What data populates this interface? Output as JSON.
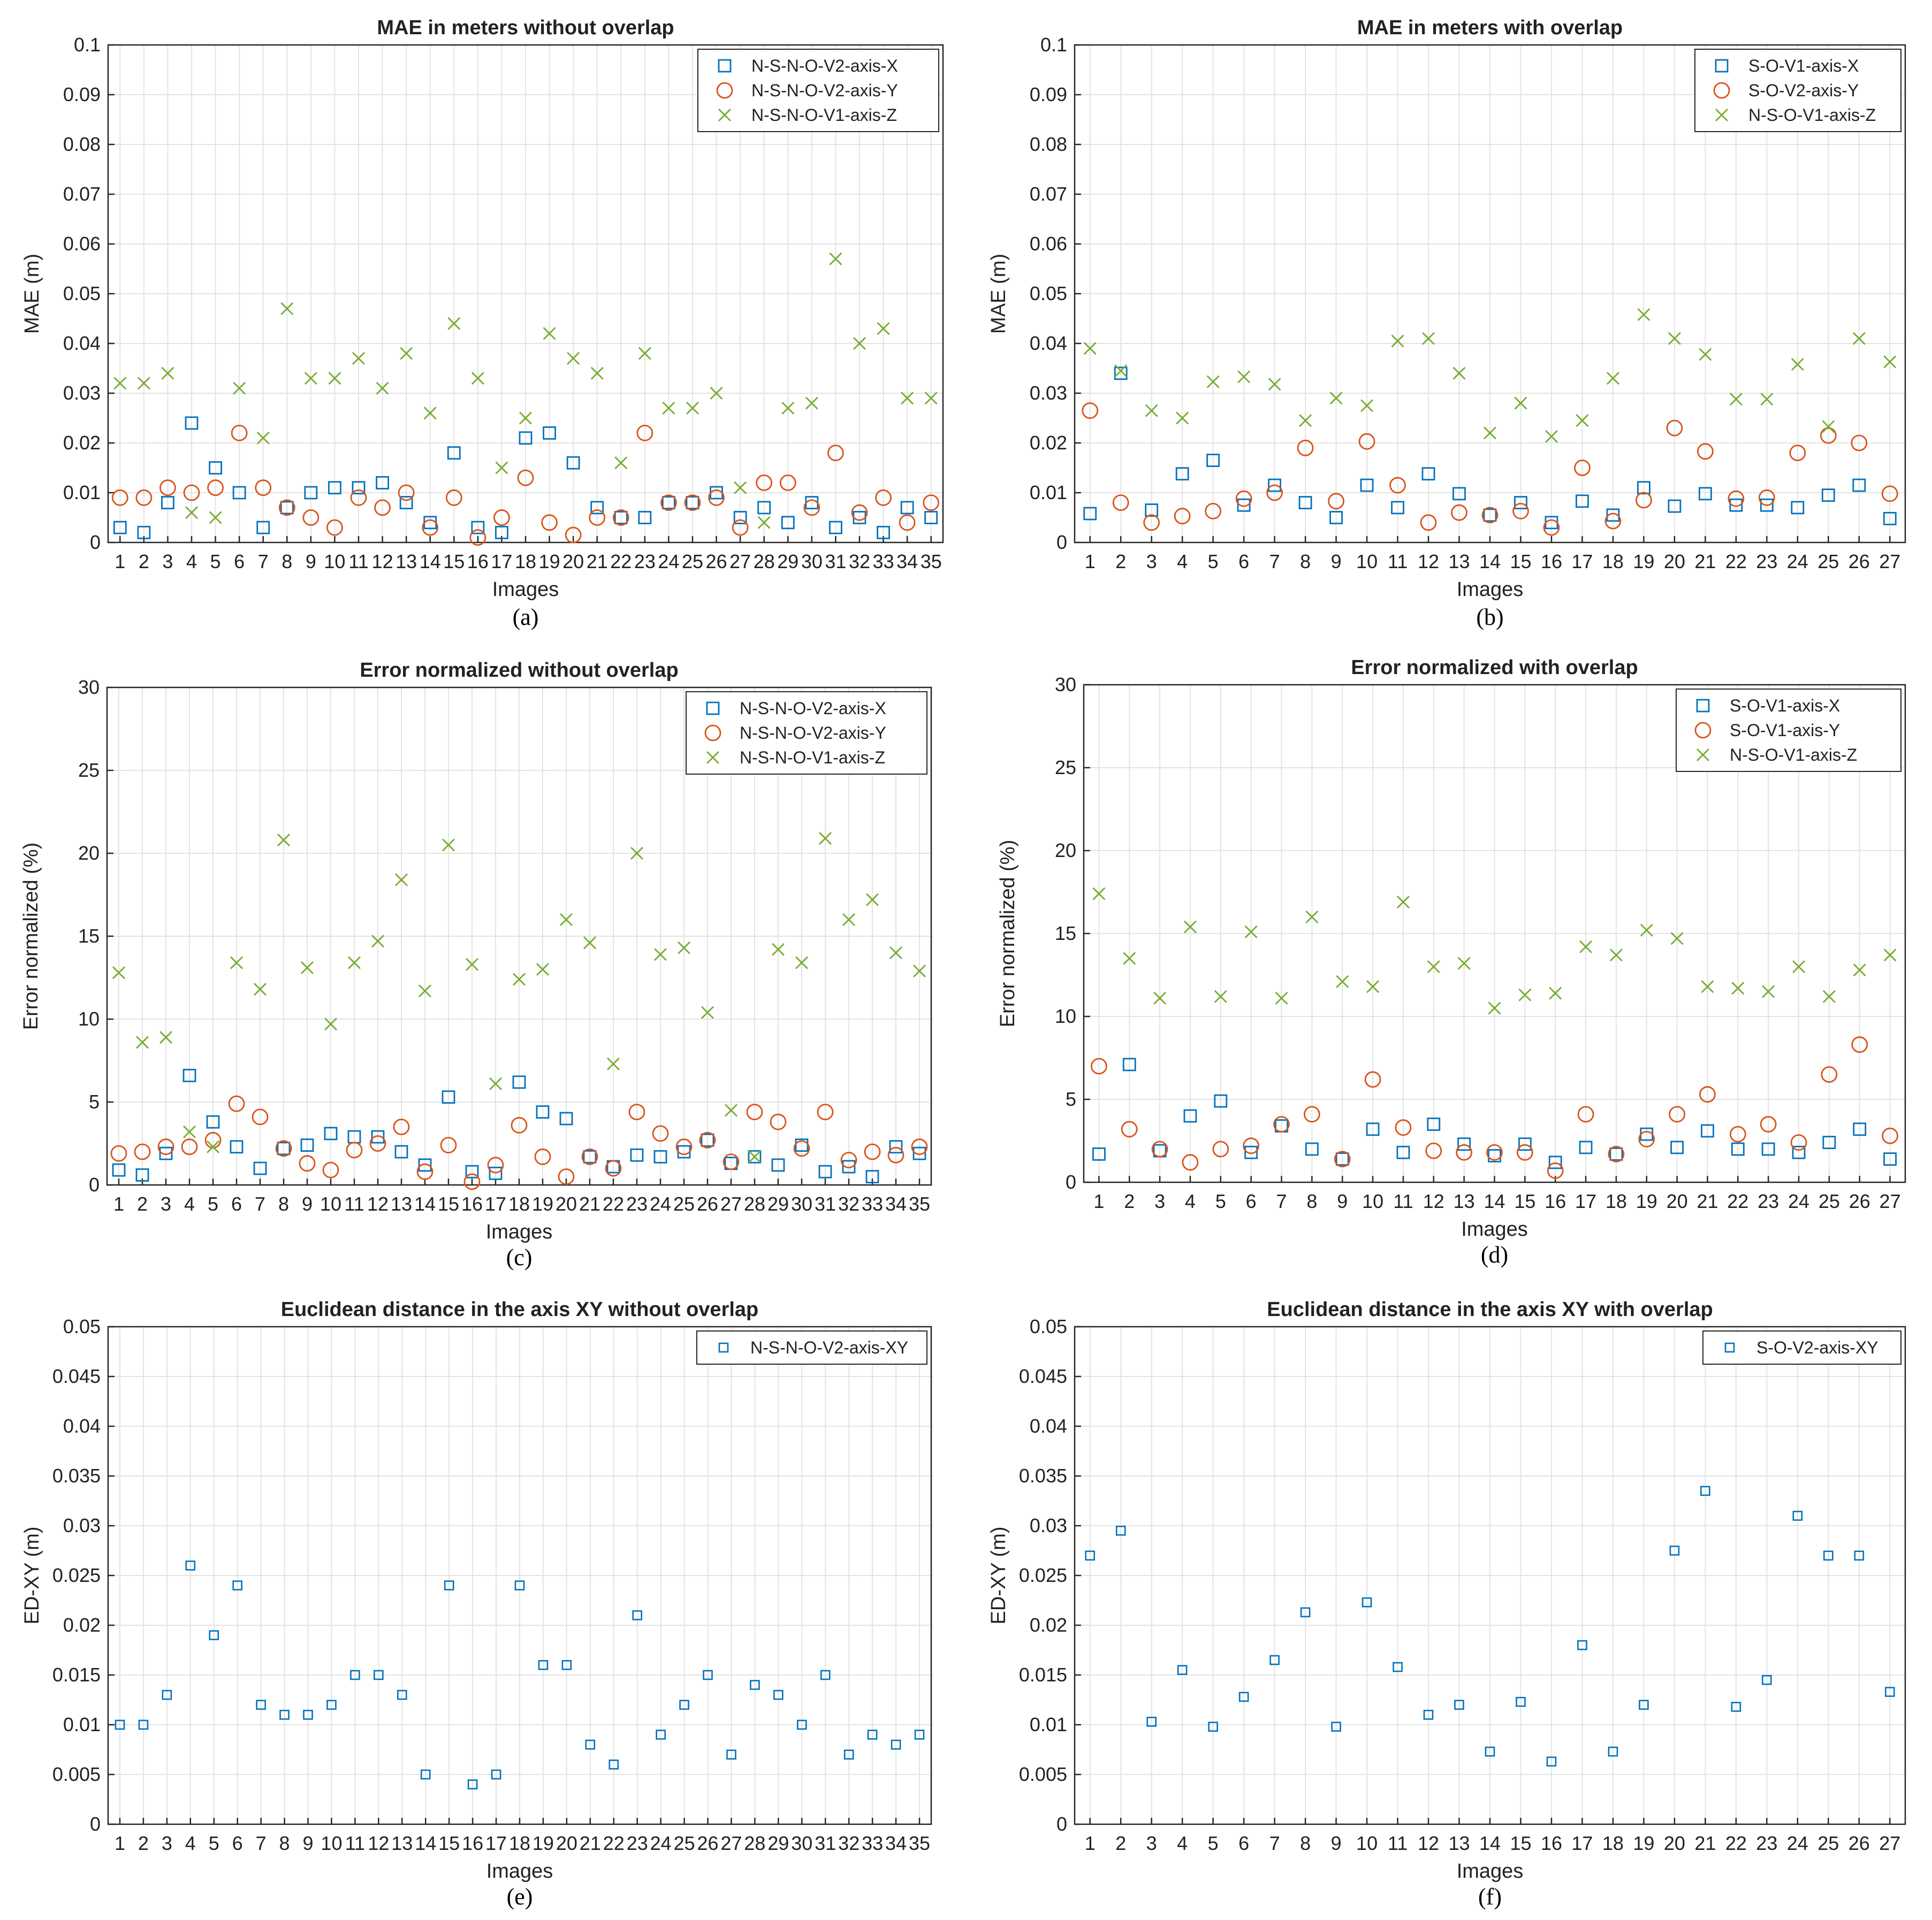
{
  "colors": {
    "x": "#0072BD",
    "y": "#D95319",
    "z": "#77AC30"
  },
  "chart_data": [
    {
      "type": "scatter",
      "title": "MAE in meters without overlap",
      "xlabel": "Images",
      "ylabel": "MAE (m)",
      "caption": "(a)",
      "ylim": [
        0,
        0.1
      ],
      "yticks": [
        0,
        0.01,
        0.02,
        0.03,
        0.04,
        0.05,
        0.06,
        0.07,
        0.08,
        0.09,
        0.1
      ],
      "yticklabels": [
        "0",
        "0.01",
        "0.02",
        "0.03",
        "0.04",
        "0.05",
        "0.06",
        "0.07",
        "0.08",
        "0.09",
        "0.1"
      ],
      "categories": [
        "1",
        "2",
        "3",
        "4",
        "5",
        "6",
        "7",
        "8",
        "9",
        "10",
        "11",
        "12",
        "13",
        "14",
        "15",
        "16",
        "17",
        "18",
        "19",
        "20",
        "21",
        "22",
        "23",
        "24",
        "25",
        "26",
        "27",
        "28",
        "29",
        "30",
        "31",
        "32",
        "33",
        "34",
        "35"
      ],
      "grid": true,
      "legend_position": "top-right",
      "series": [
        {
          "name": "N-S-N-O-V2-axis-X",
          "marker": "square",
          "color": "#0072BD",
          "values": [
            0.003,
            0.002,
            0.008,
            0.024,
            0.015,
            0.01,
            0.003,
            0.007,
            0.01,
            0.011,
            0.011,
            0.012,
            0.008,
            0.004,
            0.018,
            0.003,
            0.002,
            0.021,
            0.022,
            0.016,
            0.007,
            0.005,
            0.005,
            0.008,
            0.008,
            0.01,
            0.005,
            0.007,
            0.004,
            0.008,
            0.003,
            0.005,
            0.002,
            0.007,
            0.005
          ]
        },
        {
          "name": "N-S-N-O-V2-axis-Y",
          "marker": "circle",
          "color": "#D95319",
          "values": [
            0.009,
            0.009,
            0.011,
            0.01,
            0.011,
            0.022,
            0.011,
            0.007,
            0.005,
            0.003,
            0.009,
            0.007,
            0.01,
            0.003,
            0.009,
            0.001,
            0.005,
            0.013,
            0.004,
            0.0015,
            0.005,
            0.005,
            0.022,
            0.008,
            0.008,
            0.009,
            0.003,
            0.012,
            0.012,
            0.007,
            0.018,
            0.006,
            0.009,
            0.004,
            0.008
          ]
        },
        {
          "name": "N-S-N-O-V1-axis-Z",
          "marker": "x",
          "color": "#77AC30",
          "values": [
            0.032,
            0.032,
            0.034,
            0.006,
            0.005,
            0.031,
            0.021,
            0.047,
            0.033,
            0.033,
            0.037,
            0.031,
            0.038,
            0.026,
            0.044,
            0.033,
            0.015,
            0.025,
            0.042,
            0.037,
            0.034,
            0.016,
            0.038,
            0.027,
            0.027,
            0.03,
            0.011,
            0.004,
            0.027,
            0.028,
            0.057,
            0.04,
            0.043,
            0.029,
            0.029
          ]
        }
      ]
    },
    {
      "type": "scatter",
      "title": "MAE in meters with overlap",
      "xlabel": "Images",
      "ylabel": "MAE (m)",
      "caption": "(b)",
      "ylim": [
        0,
        0.1
      ],
      "yticks": [
        0,
        0.01,
        0.02,
        0.03,
        0.04,
        0.05,
        0.06,
        0.07,
        0.08,
        0.09,
        0.1
      ],
      "yticklabels": [
        "0",
        "0.01",
        "0.02",
        "0.03",
        "0.04",
        "0.05",
        "0.06",
        "0.07",
        "0.08",
        "0.09",
        "0.1"
      ],
      "categories": [
        "1",
        "2",
        "3",
        "4",
        "5",
        "6",
        "7",
        "8",
        "9",
        "10",
        "11",
        "12",
        "13",
        "14",
        "15",
        "16",
        "17",
        "18",
        "19",
        "20",
        "21",
        "22",
        "23",
        "24",
        "25",
        "26",
        "27"
      ],
      "grid": true,
      "legend_position": "top-right",
      "series": [
        {
          "name": "S-O-V1-axis-X",
          "marker": "square",
          "color": "#0072BD",
          "values": [
            0.0058,
            0.034,
            0.0065,
            0.0138,
            0.0165,
            0.0075,
            0.0115,
            0.008,
            0.005,
            0.0115,
            0.007,
            0.0138,
            0.0098,
            0.0055,
            0.008,
            0.004,
            0.0083,
            0.0055,
            0.011,
            0.0073,
            0.0098,
            0.0075,
            0.0075,
            0.007,
            0.0095,
            0.0115,
            0.0048
          ]
        },
        {
          "name": "S-O-V2-axis-Y",
          "marker": "circle",
          "color": "#D95319",
          "values": [
            0.0265,
            0.008,
            0.004,
            0.0053,
            0.0063,
            0.0088,
            0.01,
            0.019,
            0.0083,
            0.0203,
            0.0115,
            0.004,
            0.006,
            0.0055,
            0.0063,
            0.003,
            0.015,
            0.0043,
            0.0085,
            0.023,
            0.0183,
            0.0088,
            0.009,
            0.018,
            0.0215,
            0.02,
            0.0098
          ]
        },
        {
          "name": "N-S-O-V1-axis-Z",
          "marker": "x",
          "color": "#77AC30",
          "values": [
            0.039,
            0.0345,
            0.0265,
            0.025,
            0.0323,
            0.0333,
            0.0318,
            0.0245,
            0.029,
            0.0275,
            0.0405,
            0.041,
            0.034,
            0.022,
            0.028,
            0.0213,
            0.0245,
            0.033,
            0.0458,
            0.041,
            0.0378,
            0.0288,
            0.0288,
            0.0358,
            0.0233,
            0.041,
            0.0363
          ]
        }
      ]
    },
    {
      "type": "scatter",
      "title": "Error normalized without overlap",
      "xlabel": "Images",
      "ylabel": "Error normalized (%)",
      "caption": "(c)",
      "ylim": [
        0,
        30
      ],
      "yticks": [
        0,
        5,
        10,
        15,
        20,
        25,
        30
      ],
      "yticklabels": [
        "0",
        "5",
        "10",
        "15",
        "20",
        "25",
        "30"
      ],
      "categories": [
        "1",
        "2",
        "3",
        "4",
        "5",
        "6",
        "7",
        "8",
        "9",
        "10",
        "11",
        "12",
        "13",
        "14",
        "15",
        "16",
        "17",
        "18",
        "19",
        "20",
        "21",
        "22",
        "23",
        "24",
        "25",
        "26",
        "27",
        "28",
        "29",
        "30",
        "31",
        "32",
        "33",
        "34",
        "35"
      ],
      "grid": true,
      "legend_position": "top-right",
      "series": [
        {
          "name": "N-S-N-O-V2-axis-X",
          "marker": "square",
          "color": "#0072BD",
          "values": [
            0.9,
            0.6,
            1.9,
            6.6,
            3.8,
            2.3,
            1.0,
            2.2,
            2.4,
            3.1,
            2.9,
            2.9,
            2.0,
            1.2,
            5.3,
            0.8,
            0.7,
            6.2,
            4.4,
            4.0,
            1.7,
            1.1,
            1.8,
            1.7,
            2.0,
            2.7,
            1.3,
            1.7,
            1.2,
            2.4,
            0.8,
            1.1,
            0.5,
            2.3,
            1.9
          ]
        },
        {
          "name": "N-S-N-O-V2-axis-Y",
          "marker": "circle",
          "color": "#D95319",
          "values": [
            1.9,
            2.0,
            2.3,
            2.3,
            2.7,
            4.9,
            4.1,
            2.2,
            1.3,
            0.9,
            2.1,
            2.5,
            3.5,
            0.8,
            2.4,
            0.2,
            1.2,
            3.6,
            1.7,
            0.5,
            1.7,
            1.0,
            4.4,
            3.1,
            2.3,
            2.7,
            1.4,
            4.4,
            3.8,
            2.2,
            4.4,
            1.5,
            2.0,
            1.8,
            2.3
          ]
        },
        {
          "name": "N-S-N-O-V1-axis-Z",
          "marker": "x",
          "color": "#77AC30",
          "values": [
            12.8,
            8.6,
            8.9,
            3.2,
            2.3,
            13.4,
            11.8,
            20.8,
            13.1,
            9.7,
            13.4,
            14.7,
            18.4,
            11.7,
            20.5,
            13.3,
            6.1,
            12.4,
            13.0,
            16.0,
            14.6,
            7.3,
            20.0,
            13.9,
            14.3,
            10.4,
            4.5,
            1.7,
            14.2,
            13.4,
            20.9,
            16.0,
            17.2,
            14.0,
            12.9
          ]
        }
      ]
    },
    {
      "type": "scatter",
      "title": "Error normalized with overlap",
      "xlabel": "Images",
      "ylabel": "Error normalized (%)",
      "caption": "(d)",
      "ylim": [
        0,
        30
      ],
      "yticks": [
        0,
        5,
        10,
        15,
        20,
        25,
        30
      ],
      "yticklabels": [
        "0",
        "5",
        "10",
        "15",
        "20",
        "25",
        "30"
      ],
      "categories": [
        "1",
        "2",
        "3",
        "4",
        "5",
        "6",
        "7",
        "8",
        "9",
        "10",
        "11",
        "12",
        "13",
        "14",
        "15",
        "16",
        "17",
        "18",
        "19",
        "20",
        "21",
        "22",
        "23",
        "24",
        "25",
        "26",
        "27"
      ],
      "grid": true,
      "legend_position": "top-right",
      "series": [
        {
          "name": "S-O-V1-axis-X",
          "marker": "square",
          "color": "#0072BD",
          "values": [
            1.7,
            7.1,
            1.9,
            4.0,
            4.9,
            1.8,
            3.4,
            2.0,
            1.4,
            3.2,
            1.8,
            3.5,
            2.3,
            1.6,
            2.3,
            1.2,
            2.1,
            1.7,
            2.9,
            2.1,
            3.1,
            2.0,
            2.0,
            1.8,
            2.4,
            3.2,
            1.4
          ]
        },
        {
          "name": "S-O-V1-axis-Y",
          "marker": "circle",
          "color": "#D95319",
          "values": [
            7.0,
            3.2,
            2.0,
            1.2,
            2.0,
            2.2,
            3.5,
            4.1,
            1.4,
            6.2,
            3.3,
            1.9,
            1.8,
            1.8,
            1.8,
            0.7,
            4.1,
            1.7,
            2.6,
            4.1,
            5.3,
            2.9,
            3.5,
            2.4,
            6.5,
            8.3,
            2.8
          ]
        },
        {
          "name": "N-S-O-V1-axis-Z",
          "marker": "x",
          "color": "#77AC30",
          "values": [
            17.4,
            13.5,
            11.1,
            15.4,
            11.2,
            15.1,
            11.1,
            16.0,
            12.1,
            11.8,
            16.9,
            13.0,
            13.2,
            10.5,
            11.3,
            11.4,
            14.2,
            13.7,
            15.2,
            14.7,
            11.8,
            11.7,
            11.5,
            13.0,
            11.2,
            12.8,
            13.7
          ]
        }
      ]
    },
    {
      "type": "scatter",
      "title": "Euclidean distance in the axis XY without overlap",
      "xlabel": "Images",
      "ylabel": "ED-XY (m)",
      "caption": "(e)",
      "ylim": [
        0,
        0.05
      ],
      "yticks": [
        0,
        0.005,
        0.01,
        0.015,
        0.02,
        0.025,
        0.03,
        0.035,
        0.04,
        0.045,
        0.05
      ],
      "yticklabels": [
        "0",
        "0.005",
        "0.01",
        "0.015",
        "0.02",
        "0.025",
        "0.03",
        "0.035",
        "0.04",
        "0.045",
        "0.05"
      ],
      "categories": [
        "1",
        "2",
        "3",
        "4",
        "5",
        "6",
        "7",
        "8",
        "9",
        "10",
        "11",
        "12",
        "13",
        "14",
        "15",
        "16",
        "17",
        "18",
        "19",
        "20",
        "21",
        "22",
        "23",
        "24",
        "25",
        "26",
        "27",
        "28",
        "29",
        "30",
        "31",
        "32",
        "33",
        "34",
        "35"
      ],
      "grid": true,
      "legend_position": "top-right",
      "series": [
        {
          "name": "N-S-N-O-V2-axis-XY",
          "marker": "square-small",
          "color": "#0072BD",
          "values": [
            0.01,
            0.01,
            0.013,
            0.026,
            0.019,
            0.024,
            0.012,
            0.011,
            0.011,
            0.012,
            0.015,
            0.015,
            0.013,
            0.005,
            0.024,
            0.004,
            0.005,
            0.024,
            0.016,
            0.016,
            0.008,
            0.006,
            0.021,
            0.009,
            0.012,
            0.015,
            0.007,
            0.014,
            0.013,
            0.01,
            0.015,
            0.007,
            0.009,
            0.008,
            0.009
          ]
        }
      ]
    },
    {
      "type": "scatter",
      "title": "Euclidean distance in the axis XY with overlap",
      "xlabel": "Images",
      "ylabel": "ED-XY (m)",
      "caption": "(f)",
      "ylim": [
        0,
        0.05
      ],
      "yticks": [
        0,
        0.005,
        0.01,
        0.015,
        0.02,
        0.025,
        0.03,
        0.035,
        0.04,
        0.045,
        0.05
      ],
      "yticklabels": [
        "0",
        "0.005",
        "0.01",
        "0.015",
        "0.02",
        "0.025",
        "0.03",
        "0.035",
        "0.04",
        "0.045",
        "0.05"
      ],
      "categories": [
        "1",
        "2",
        "3",
        "4",
        "5",
        "6",
        "7",
        "8",
        "9",
        "10",
        "11",
        "12",
        "13",
        "14",
        "15",
        "16",
        "17",
        "18",
        "19",
        "20",
        "21",
        "22",
        "23",
        "24",
        "25",
        "26",
        "27"
      ],
      "grid": true,
      "legend_position": "top-right",
      "series": [
        {
          "name": "S-O-V2-axis-XY",
          "marker": "square-small",
          "color": "#0072BD",
          "values": [
            0.027,
            0.0295,
            0.0103,
            0.0155,
            0.0098,
            0.0128,
            0.0165,
            0.0213,
            0.0098,
            0.0223,
            0.0158,
            0.011,
            0.012,
            0.0073,
            0.0123,
            0.0063,
            0.018,
            0.0073,
            0.012,
            0.0275,
            0.0335,
            0.0118,
            0.0145,
            0.031,
            0.027,
            0.027,
            0.0133
          ]
        }
      ]
    }
  ]
}
